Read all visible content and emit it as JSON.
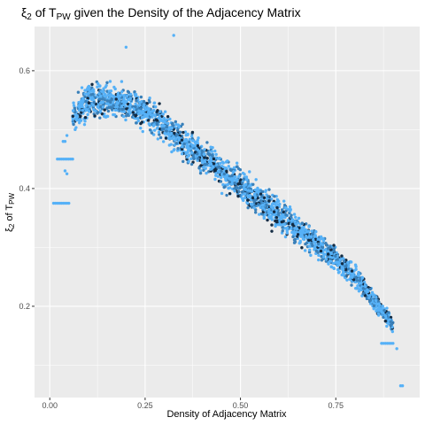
{
  "chart_data": {
    "type": "scatter",
    "title": "ξ2 of TPW given the Density of the Adjacency Matrix",
    "title_parts": {
      "xi": "ξ",
      "xi_sub": "2",
      "mid": " of T",
      "t_sub": "PW",
      "rest": " given the Density of the Adjacency Matrix"
    },
    "xlabel": "Density of Adjacency Matrix",
    "ylabel": "ξ2 of TPW",
    "ylabel_parts": {
      "xi": "ξ",
      "xi_sub": "2",
      "mid": " of T",
      "t_sub": "PW"
    },
    "xlim": [
      -0.04,
      0.97
    ],
    "ylim": [
      0.045,
      0.675
    ],
    "x_ticks": [
      0.0,
      0.25,
      0.5,
      0.75
    ],
    "x_tick_labels": [
      "0.00",
      "0.25",
      "0.50",
      "0.75"
    ],
    "y_ticks": [
      0.2,
      0.4,
      0.6
    ],
    "y_tick_labels": [
      "0.2",
      "0.4",
      "0.6"
    ],
    "grid": true,
    "legend": "none",
    "colors": {
      "panel": "#ebebeb",
      "grid": "#ffffff",
      "point_light": "#56B1F7",
      "point_mid": "#3A80B9",
      "point_dark": "#132B43"
    },
    "series": [
      {
        "trend_x": [
          0.06,
          0.1,
          0.15,
          0.2,
          0.25,
          0.3,
          0.35,
          0.4,
          0.45,
          0.5,
          0.55,
          0.6,
          0.65,
          0.7,
          0.75,
          0.8,
          0.85,
          0.88,
          0.9
        ],
        "trend_y": [
          0.52,
          0.55,
          0.55,
          0.545,
          0.53,
          0.505,
          0.48,
          0.455,
          0.43,
          0.405,
          0.38,
          0.355,
          0.33,
          0.305,
          0.28,
          0.25,
          0.21,
          0.185,
          0.17
        ],
        "spread": 0.06
      }
    ],
    "isolated_points": [
      {
        "x": 0.01,
        "y": 0.375
      },
      {
        "x": 0.015,
        "y": 0.375
      },
      {
        "x": 0.02,
        "y": 0.375
      },
      {
        "x": 0.025,
        "y": 0.375
      },
      {
        "x": 0.03,
        "y": 0.375
      },
      {
        "x": 0.035,
        "y": 0.375
      },
      {
        "x": 0.04,
        "y": 0.375
      },
      {
        "x": 0.045,
        "y": 0.375
      },
      {
        "x": 0.05,
        "y": 0.375
      },
      {
        "x": 0.02,
        "y": 0.45
      },
      {
        "x": 0.025,
        "y": 0.45
      },
      {
        "x": 0.03,
        "y": 0.45
      },
      {
        "x": 0.035,
        "y": 0.45
      },
      {
        "x": 0.04,
        "y": 0.45
      },
      {
        "x": 0.045,
        "y": 0.45
      },
      {
        "x": 0.05,
        "y": 0.45
      },
      {
        "x": 0.055,
        "y": 0.45
      },
      {
        "x": 0.06,
        "y": 0.45
      },
      {
        "x": 0.04,
        "y": 0.43
      },
      {
        "x": 0.045,
        "y": 0.425
      },
      {
        "x": 0.035,
        "y": 0.48
      },
      {
        "x": 0.04,
        "y": 0.48
      },
      {
        "x": 0.045,
        "y": 0.49
      },
      {
        "x": 0.87,
        "y": 0.137
      },
      {
        "x": 0.875,
        "y": 0.137
      },
      {
        "x": 0.88,
        "y": 0.137
      },
      {
        "x": 0.885,
        "y": 0.137
      },
      {
        "x": 0.89,
        "y": 0.137
      },
      {
        "x": 0.895,
        "y": 0.137
      },
      {
        "x": 0.9,
        "y": 0.137
      },
      {
        "x": 0.91,
        "y": 0.128
      },
      {
        "x": 0.92,
        "y": 0.065
      },
      {
        "x": 0.925,
        "y": 0.065
      },
      {
        "x": 0.325,
        "y": 0.66
      },
      {
        "x": 0.2,
        "y": 0.64
      }
    ]
  }
}
